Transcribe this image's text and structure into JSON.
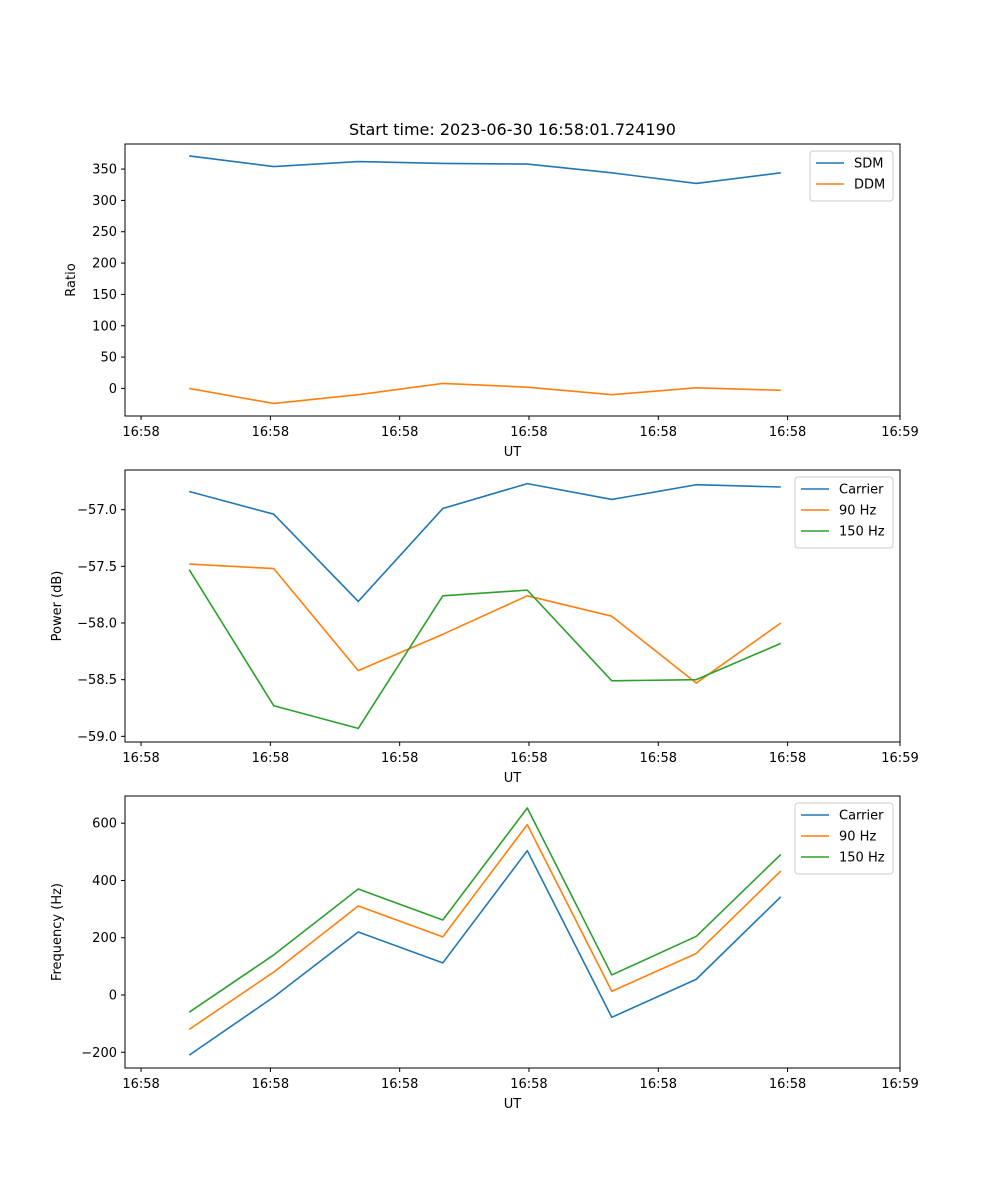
{
  "chart_data": [
    {
      "type": "line",
      "title": "Start time: 2023-06-30 16:58:01.724190",
      "xlabel": "UT",
      "ylabel": "Ratio",
      "x": [
        1,
        2,
        3,
        4,
        5,
        6,
        7,
        8
      ],
      "xlim": [
        0.24,
        9.41
      ],
      "x_ticks": [
        0.43,
        1.96,
        3.49,
        5.02,
        6.55,
        8.08,
        9.41
      ],
      "x_tick_labels": [
        "16:58",
        "16:58",
        "16:58",
        "16:58",
        "16:58",
        "16:58",
        "16:59"
      ],
      "ylim": [
        -44,
        390
      ],
      "y_ticks": [
        0,
        50,
        100,
        150,
        200,
        250,
        300,
        350
      ],
      "y_tick_labels": [
        "0",
        "50",
        "100",
        "150",
        "200",
        "250",
        "300",
        "350"
      ],
      "legend_position": "top-right",
      "grid": false,
      "series": [
        {
          "name": "SDM",
          "color": "#1f77b4",
          "values": [
            371,
            354,
            362,
            359,
            358,
            344,
            327,
            344
          ]
        },
        {
          "name": "DDM",
          "color": "#ff7f0e",
          "values": [
            0,
            -24,
            -10,
            8,
            2,
            -10,
            1,
            -3
          ]
        }
      ]
    },
    {
      "type": "line",
      "title": "",
      "xlabel": "UT",
      "ylabel": "Power (dB)",
      "x": [
        1,
        2,
        3,
        4,
        5,
        6,
        7,
        8
      ],
      "xlim": [
        0.24,
        9.41
      ],
      "x_ticks": [
        0.43,
        1.96,
        3.49,
        5.02,
        6.55,
        8.08,
        9.41
      ],
      "x_tick_labels": [
        "16:58",
        "16:58",
        "16:58",
        "16:58",
        "16:58",
        "16:58",
        "16:59"
      ],
      "ylim": [
        -59.05,
        -56.65
      ],
      "y_ticks": [
        -59.0,
        -58.5,
        -58.0,
        -57.5,
        -57.0
      ],
      "y_tick_labels": [
        "−59.0",
        "−58.5",
        "−58.0",
        "−57.5",
        "−57.0"
      ],
      "legend_position": "top-right",
      "grid": false,
      "series": [
        {
          "name": "Carrier",
          "color": "#1f77b4",
          "values": [
            -56.84,
            -57.04,
            -57.81,
            -56.99,
            -56.77,
            -56.91,
            -56.78,
            -56.8
          ]
        },
        {
          "name": "90 Hz",
          "color": "#ff7f0e",
          "values": [
            -57.48,
            -57.52,
            -58.42,
            -58.1,
            -57.76,
            -57.94,
            -58.53,
            -58.0
          ]
        },
        {
          "name": "150 Hz",
          "color": "#2ca02c",
          "values": [
            -57.53,
            -58.73,
            -58.93,
            -57.76,
            -57.71,
            -58.51,
            -58.5,
            -58.18
          ]
        }
      ]
    },
    {
      "type": "line",
      "title": "",
      "xlabel": "UT",
      "ylabel": "Frequency (Hz)",
      "x": [
        1,
        2,
        3,
        4,
        5,
        6,
        7,
        8
      ],
      "xlim": [
        0.24,
        9.41
      ],
      "x_ticks": [
        0.43,
        1.96,
        3.49,
        5.02,
        6.55,
        8.08,
        9.41
      ],
      "x_tick_labels": [
        "16:58",
        "16:58",
        "16:58",
        "16:58",
        "16:58",
        "16:58",
        "16:59"
      ],
      "ylim": [
        -255,
        695
      ],
      "y_ticks": [
        -200,
        0,
        200,
        400,
        600
      ],
      "y_tick_labels": [
        "−200",
        "0",
        "200",
        "400",
        "600"
      ],
      "legend_position": "top-right",
      "grid": false,
      "series": [
        {
          "name": "Carrier",
          "color": "#1f77b4",
          "values": [
            -210,
            -7,
            220,
            112,
            504,
            -78,
            55,
            343
          ]
        },
        {
          "name": "90 Hz",
          "color": "#ff7f0e",
          "values": [
            -120,
            80,
            311,
            203,
            595,
            13,
            145,
            433
          ]
        },
        {
          "name": "150 Hz",
          "color": "#2ca02c",
          "values": [
            -60,
            140,
            370,
            262,
            653,
            70,
            205,
            491
          ]
        }
      ]
    }
  ]
}
